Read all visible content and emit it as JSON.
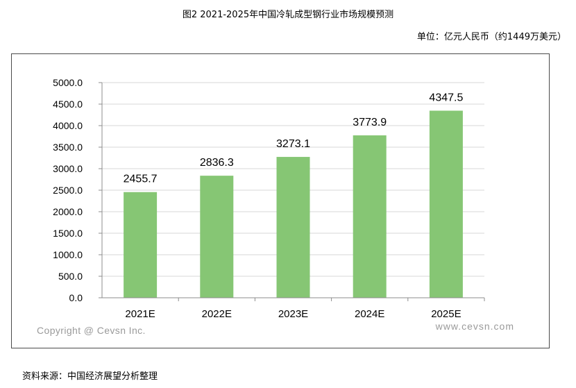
{
  "title": "图2 2021-2025年中国冷轧成型钢行业市场规模预测",
  "unit_note": "单位：亿元人民币（约1449万美元）",
  "source_note": "资料来源：中国经济展望分析整理",
  "copyright": "Copyright @ Cevsn Inc.",
  "website": "www.cevsn.com",
  "colors": {
    "bar": "#86c674",
    "grid": "#d7d7d7",
    "axis": "#8c8c8c"
  },
  "chart_data": {
    "type": "bar",
    "categories": [
      "2021E",
      "2022E",
      "2023E",
      "2024E",
      "2025E"
    ],
    "values": [
      2455.7,
      2836.3,
      3273.1,
      3773.9,
      4347.5
    ],
    "value_labels": [
      "2455.7",
      "2836.3",
      "3273.1",
      "3773.9",
      "4347.5"
    ],
    "ylim": [
      0,
      5000
    ],
    "yticks": [
      "0.0",
      "500.0",
      "1000.0",
      "1500.0",
      "2000.0",
      "2500.0",
      "3000.0",
      "3500.0",
      "4000.0",
      "4500.0",
      "5000.0"
    ],
    "grid": true
  }
}
